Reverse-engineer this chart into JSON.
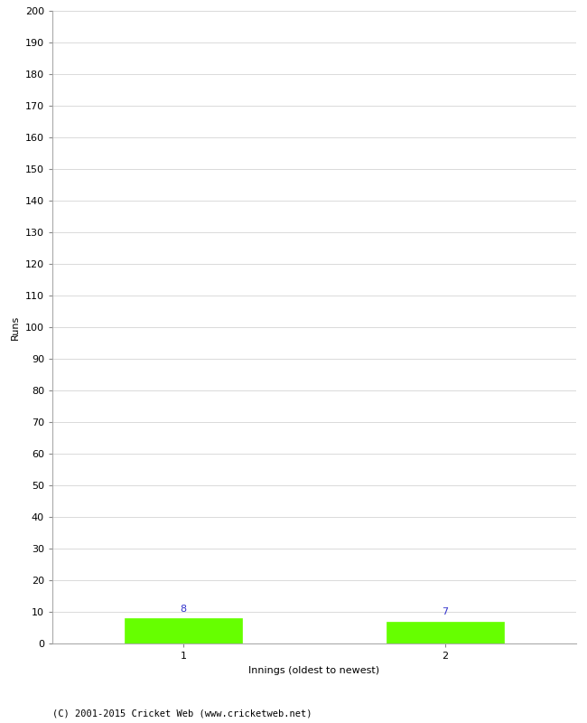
{
  "innings": [
    1,
    2
  ],
  "runs": [
    8,
    7
  ],
  "bar_color": "#66ff00",
  "bar_edgecolor": "#66ff00",
  "xlabel": "Innings (oldest to newest)",
  "ylabel": "Runs",
  "ylim": [
    0,
    200
  ],
  "yticks": [
    0,
    10,
    20,
    30,
    40,
    50,
    60,
    70,
    80,
    90,
    100,
    110,
    120,
    130,
    140,
    150,
    160,
    170,
    180,
    190,
    200
  ],
  "xticks": [
    1,
    2
  ],
  "value_label_color": "#3333cc",
  "value_label_fontsize": 8,
  "axis_label_fontsize": 8,
  "tick_fontsize": 8,
  "footer": "(C) 2001-2015 Cricket Web (www.cricketweb.net)",
  "footer_fontsize": 7.5,
  "background_color": "#ffffff",
  "grid_color": "#cccccc",
  "bar_width": 0.45,
  "xlim": [
    0.5,
    2.5
  ]
}
